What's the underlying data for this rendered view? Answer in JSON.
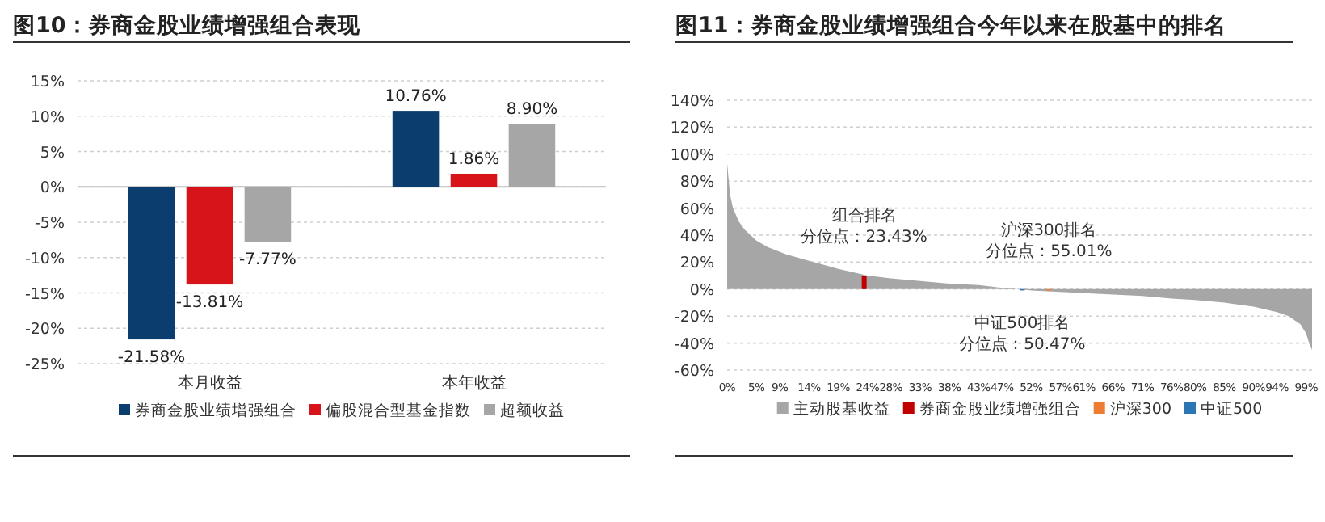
{
  "chart_data": [
    {
      "type": "bar",
      "title": "图10：券商金股业绩增强组合表现",
      "categories": [
        "本月收益",
        "本年收益"
      ],
      "series": [
        {
          "name": "券商金股业绩增强组合",
          "color": "#0b3d6f",
          "values": [
            -21.58,
            10.76
          ],
          "value_labels": [
            "-21.58%",
            "10.76%"
          ]
        },
        {
          "name": "偏股混合型基金指数",
          "color": "#d7141a",
          "values": [
            -13.81,
            1.86
          ],
          "value_labels": [
            "-13.81%",
            "1.86%"
          ]
        },
        {
          "name": "超额收益",
          "color": "#a6a6a6",
          "values": [
            -7.77,
            8.9
          ],
          "value_labels": [
            "-7.77%",
            "8.90%"
          ]
        }
      ],
      "ylim": [
        -25,
        15
      ],
      "yticks": [
        {
          "value": -25,
          "label": "-25%"
        },
        {
          "value": -20,
          "label": "-20%"
        },
        {
          "value": -15,
          "label": "-15%"
        },
        {
          "value": -10,
          "label": "-10%"
        },
        {
          "value": -5,
          "label": "-5%"
        },
        {
          "value": 0,
          "label": "0%"
        },
        {
          "value": 5,
          "label": "5%"
        },
        {
          "value": 10,
          "label": "10%"
        },
        {
          "value": 15,
          "label": "15%"
        }
      ],
      "grid": "y",
      "legend": "bottom"
    },
    {
      "type": "area",
      "title": "图11：券商金股业绩增强组合今年以来在股基中的排名",
      "series": [
        {
          "name": "主动股基收益",
          "color": "#a6a6a6",
          "x": [
            0,
            0.5,
            1,
            2,
            3,
            5,
            7,
            10,
            14,
            19,
            24,
            28,
            33,
            38,
            43,
            47,
            50,
            52,
            57,
            61,
            66,
            71,
            76,
            80,
            85,
            90,
            94,
            96,
            98,
            99,
            99.5,
            100
          ],
          "values": [
            93,
            70,
            60,
            50,
            44,
            36,
            31,
            26,
            21,
            15,
            10,
            8,
            6,
            4,
            3,
            1,
            0,
            -1,
            -2,
            -3,
            -4,
            -5,
            -7,
            -8,
            -10,
            -13,
            -17,
            -20,
            -26,
            -33,
            -40,
            -45
          ]
        },
        {
          "name": "券商金股业绩增强组合",
          "type": "bar",
          "color": "#c00000",
          "x": [
            23.43
          ],
          "values": [
            10
          ]
        },
        {
          "name": "沪深300",
          "type": "bar",
          "color": "#ed7d31",
          "x": [
            55.01
          ],
          "values": [
            -1
          ]
        },
        {
          "name": "中证500",
          "type": "bar",
          "color": "#2e75b6",
          "x": [
            50.47
          ],
          "values": [
            0
          ]
        }
      ],
      "annotations": [
        "组合排名",
        {
          "text": "分位点：23.43%",
          "x": 23.43,
          "y": 10
        },
        "沪深300排名",
        {
          "text": "分位点：55.01%",
          "x": 55.01,
          "y": -1
        },
        "中证500排名",
        {
          "text": "分位点：50.47%",
          "x": 50.47,
          "y": 0
        }
      ],
      "xlim": [
        0,
        100
      ],
      "xticks": [
        {
          "value": 0,
          "label": "0%"
        },
        {
          "value": 5,
          "label": "5%"
        },
        {
          "value": 9,
          "label": "9%"
        },
        {
          "value": 14,
          "label": "14%"
        },
        {
          "value": 19,
          "label": "19%"
        },
        {
          "value": 24,
          "label": "24%"
        },
        {
          "value": 28,
          "label": "28%"
        },
        {
          "value": 33,
          "label": "33%"
        },
        {
          "value": 38,
          "label": "38%"
        },
        {
          "value": 43,
          "label": "43%"
        },
        {
          "value": 47,
          "label": "47%"
        },
        {
          "value": 52,
          "label": "52%"
        },
        {
          "value": 57,
          "label": "57%"
        },
        {
          "value": 61,
          "label": "61%"
        },
        {
          "value": 66,
          "label": "66%"
        },
        {
          "value": 71,
          "label": "71%"
        },
        {
          "value": 76,
          "label": "76%"
        },
        {
          "value": 80,
          "label": "80%"
        },
        {
          "value": 85,
          "label": "85%"
        },
        {
          "value": 90,
          "label": "90%"
        },
        {
          "value": 94,
          "label": "94%"
        },
        {
          "value": 99,
          "label": "99%"
        }
      ],
      "ylim": [
        -60,
        140
      ],
      "yticks": [
        {
          "value": -60,
          "label": "-60%"
        },
        {
          "value": -40,
          "label": "-40%"
        },
        {
          "value": -20,
          "label": "-20%"
        },
        {
          "value": 0,
          "label": "0%"
        },
        {
          "value": 20,
          "label": "20%"
        },
        {
          "value": 40,
          "label": "40%"
        },
        {
          "value": 60,
          "label": "60%"
        },
        {
          "value": 80,
          "label": "80%"
        },
        {
          "value": 100,
          "label": "100%"
        },
        {
          "value": 120,
          "label": "120%"
        },
        {
          "value": 140,
          "label": "140%"
        }
      ],
      "grid": "y",
      "legend": "bottom"
    }
  ]
}
